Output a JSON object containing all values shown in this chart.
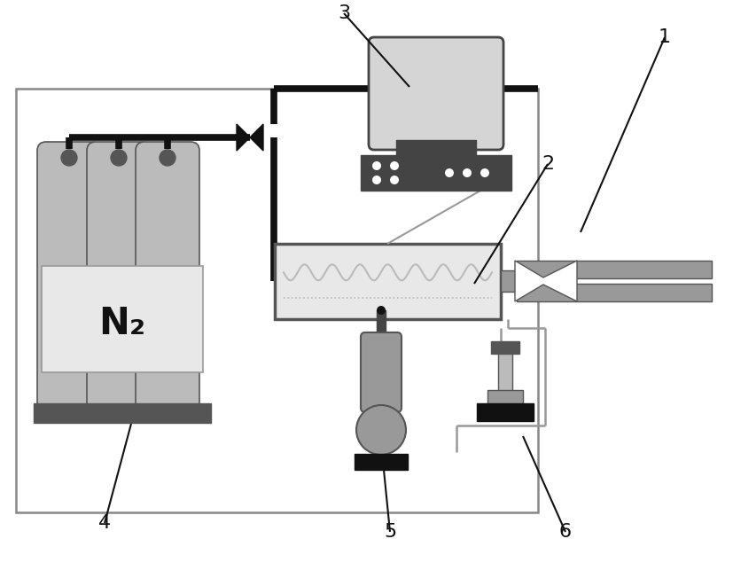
{
  "bg_color": "#ffffff",
  "black": "#111111",
  "dark_gray": "#555555",
  "mid_gray": "#999999",
  "light_gray": "#bbbbbb",
  "lighter_gray": "#d5d5d5",
  "very_light_gray": "#e8e8e8",
  "dark_box": "#444444",
  "border_gray": "#888888",
  "N2_text": "N₂",
  "figw": 8.27,
  "figh": 6.43,
  "dpi": 100
}
